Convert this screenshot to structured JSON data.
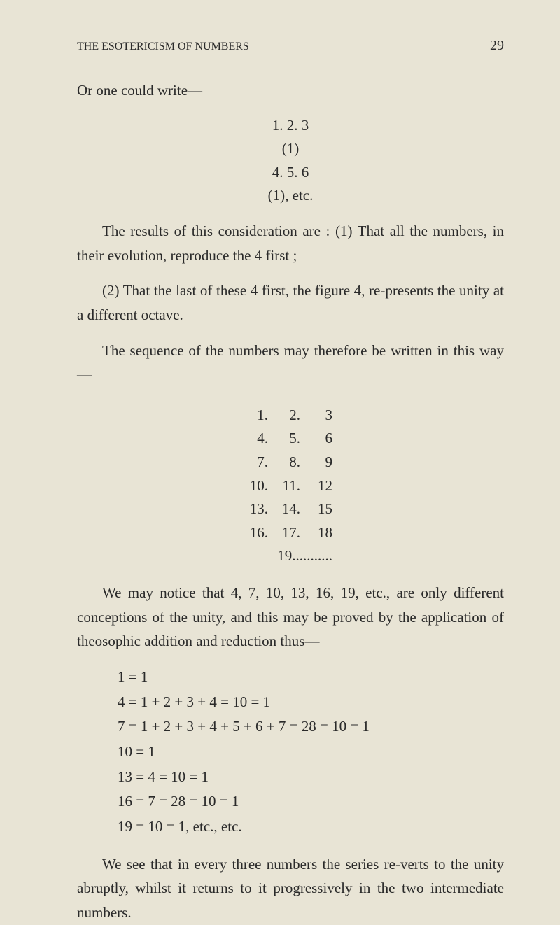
{
  "header": {
    "title": "THE ESOTERICISM OF NUMBERS",
    "page": "29"
  },
  "para1": "Or one could write—",
  "block1": {
    "line1": "1. 2. 3",
    "line2": "(1)",
    "line3": "4. 5. 6",
    "line4": "(1), etc."
  },
  "para2": "The results of this consideration are : (1) That all the numbers, in their evolution, reproduce the 4 first ;",
  "para3": "(2) That the last of these 4 first, the figure 4, re-presents the unity at a different octave.",
  "para4": "The sequence of the numbers may therefore be written in this way—",
  "table": {
    "r1c1": "1.",
    "r1c2": "2.",
    "r1c3": "3",
    "r2c1": "4.",
    "r2c2": "5.",
    "r2c3": "6",
    "r3c1": "7.",
    "r3c2": "8.",
    "r3c3": "9",
    "r4c1": "10.",
    "r4c2": "11.",
    "r4c3": "12",
    "r5c1": "13.",
    "r5c2": "14.",
    "r5c3": "15",
    "r6c1": "16.",
    "r6c2": "17.",
    "r6c3": "18",
    "r7": "19..........."
  },
  "para5": "We may notice that 4, 7, 10, 13, 16, 19, etc., are only different conceptions of the unity, and this may be proved by the application of theosophic addition and reduction thus—",
  "math": {
    "l1": "1 =  1",
    "l2": "4 =  1 + 2 + 3 + 4 = 10 = 1",
    "l3": "7 =  1 + 2 + 3 + 4 +  5 + 6 + 7 = 28 = 10 = 1",
    "l4": "10 =  1",
    "l5": "13 =  4 = 10 =  1",
    "l6": "16 =  7 = 28 = 10 = 1",
    "l7": "19 = 10 =  1, etc., etc."
  },
  "para6": "We see that in every three numbers the series re-verts to the unity abruptly, whilst it returns to it progressively in the two intermediate numbers."
}
